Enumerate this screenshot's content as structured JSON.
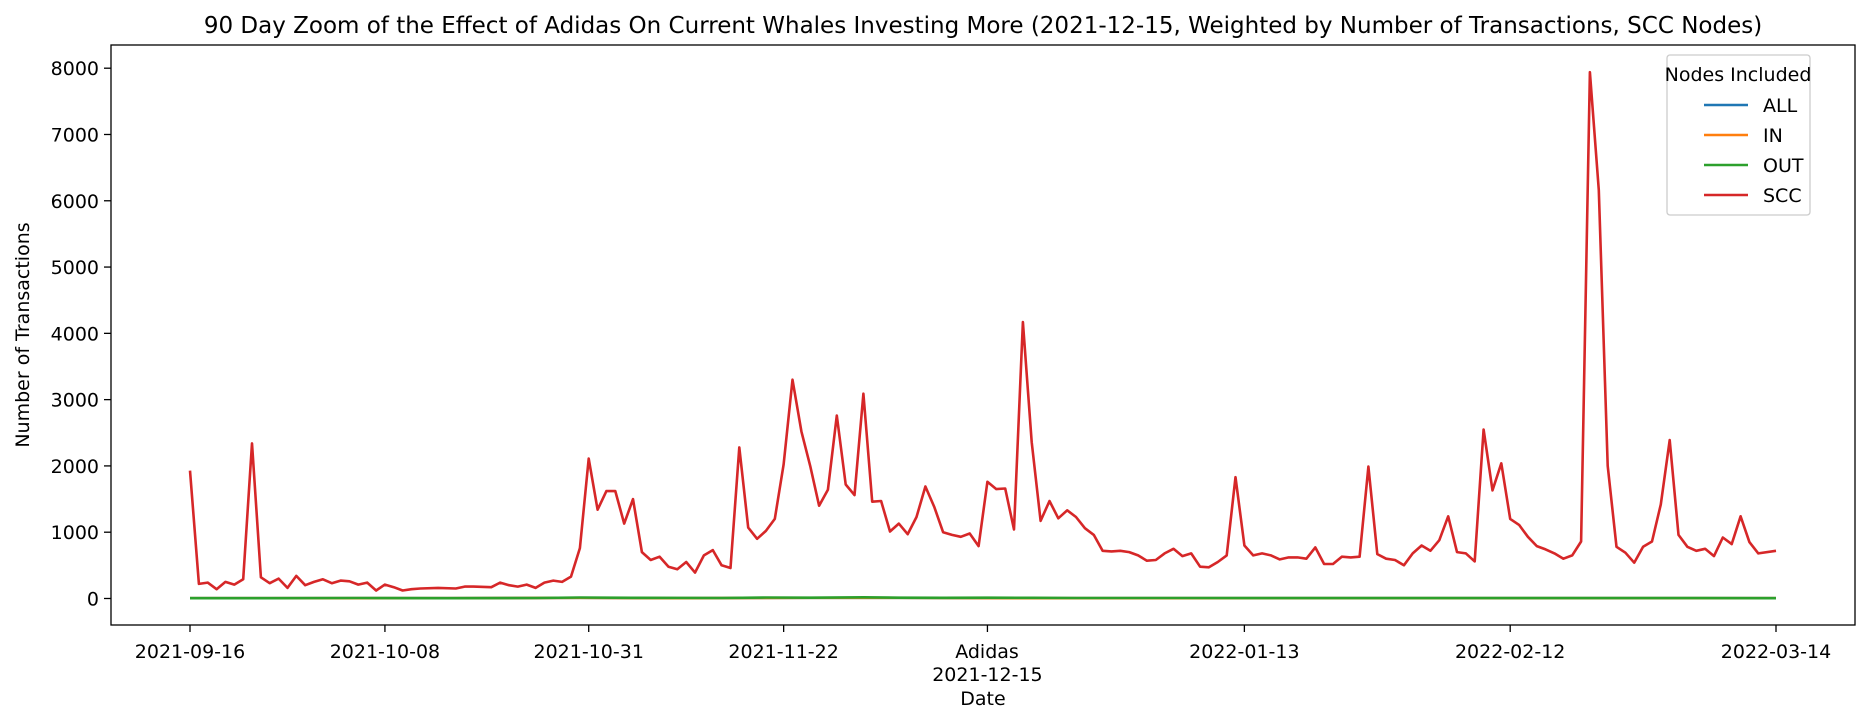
{
  "chart_data": {
    "type": "line",
    "title": "90 Day Zoom of the Effect of Adidas On Current Whales Investing More (2021-12-15, Weighted by Number of Transactions, SCC Nodes)",
    "xlabel": "Date",
    "ylabel": "Number of Transactions",
    "event": {
      "label": "Adidas",
      "date": "2021-12-15"
    },
    "x_range": [
      "2021-09-16",
      "2022-03-14"
    ],
    "ylim": [
      -400,
      8350
    ],
    "x_ticks": [
      "2021-09-16",
      "2021-10-08",
      "2021-10-31",
      "2021-11-22",
      "2021-12-15",
      "2022-01-13",
      "2022-02-12",
      "2022-03-14"
    ],
    "y_ticks": [
      0,
      1000,
      2000,
      3000,
      4000,
      5000,
      6000,
      7000,
      8000
    ],
    "grid": false,
    "legend": {
      "title": "Nodes Included",
      "placement": "top-right"
    },
    "series": [
      {
        "name": "ALL",
        "color": "#1f77b4",
        "points": [
          [
            "2021-09-16",
            5
          ],
          [
            "2021-10-01",
            5
          ],
          [
            "2021-10-15",
            5
          ],
          [
            "2021-10-30",
            10
          ],
          [
            "2021-11-10",
            5
          ],
          [
            "2021-11-25",
            10
          ],
          [
            "2021-12-05",
            10
          ],
          [
            "2021-12-20",
            5
          ],
          [
            "2022-01-05",
            5
          ],
          [
            "2022-01-20",
            5
          ],
          [
            "2022-02-05",
            5
          ],
          [
            "2022-02-20",
            5
          ],
          [
            "2022-03-14",
            5
          ]
        ]
      },
      {
        "name": "IN",
        "color": "#ff7f0e",
        "points": [
          [
            "2021-09-16",
            5
          ],
          [
            "2021-10-01",
            5
          ],
          [
            "2021-10-15",
            5
          ],
          [
            "2021-10-30",
            10
          ],
          [
            "2021-11-10",
            5
          ],
          [
            "2021-11-25",
            10
          ],
          [
            "2021-12-05",
            10
          ],
          [
            "2021-12-20",
            5
          ],
          [
            "2022-01-05",
            5
          ],
          [
            "2022-01-20",
            5
          ],
          [
            "2022-02-05",
            5
          ],
          [
            "2022-02-20",
            5
          ],
          [
            "2022-03-14",
            5
          ]
        ]
      },
      {
        "name": "OUT",
        "color": "#2ca02c",
        "points": [
          [
            "2021-09-16",
            5
          ],
          [
            "2021-09-25",
            5
          ],
          [
            "2021-10-05",
            8
          ],
          [
            "2021-10-15",
            5
          ],
          [
            "2021-10-25",
            8
          ],
          [
            "2021-10-30",
            15
          ],
          [
            "2021-11-05",
            10
          ],
          [
            "2021-11-15",
            8
          ],
          [
            "2021-11-20",
            15
          ],
          [
            "2021-11-25",
            12
          ],
          [
            "2021-12-01",
            18
          ],
          [
            "2021-12-05",
            12
          ],
          [
            "2021-12-10",
            10
          ],
          [
            "2021-12-15",
            12
          ],
          [
            "2021-12-20",
            10
          ],
          [
            "2021-12-25",
            8
          ],
          [
            "2022-01-05",
            8
          ],
          [
            "2022-01-15",
            6
          ],
          [
            "2022-01-25",
            6
          ],
          [
            "2022-02-05",
            6
          ],
          [
            "2022-02-15",
            6
          ],
          [
            "2022-02-25",
            6
          ],
          [
            "2022-03-05",
            6
          ],
          [
            "2022-03-14",
            5
          ]
        ]
      },
      {
        "name": "SCC",
        "color": "#d62728",
        "points": [
          [
            "2021-09-16",
            1930
          ],
          [
            "2021-09-17",
            220
          ],
          [
            "2021-09-18",
            240
          ],
          [
            "2021-09-19",
            140
          ],
          [
            "2021-09-20",
            250
          ],
          [
            "2021-09-21",
            210
          ],
          [
            "2021-09-22",
            290
          ],
          [
            "2021-09-23",
            2340
          ],
          [
            "2021-09-24",
            320
          ],
          [
            "2021-09-25",
            230
          ],
          [
            "2021-09-26",
            300
          ],
          [
            "2021-09-27",
            160
          ],
          [
            "2021-09-28",
            340
          ],
          [
            "2021-09-29",
            200
          ],
          [
            "2021-09-30",
            250
          ],
          [
            "2021-10-01",
            290
          ],
          [
            "2021-10-02",
            230
          ],
          [
            "2021-10-03",
            270
          ],
          [
            "2021-10-04",
            260
          ],
          [
            "2021-10-05",
            210
          ],
          [
            "2021-10-06",
            240
          ],
          [
            "2021-10-07",
            120
          ],
          [
            "2021-10-08",
            210
          ],
          [
            "2021-10-09",
            170
          ],
          [
            "2021-10-10",
            120
          ],
          [
            "2021-10-11",
            140
          ],
          [
            "2021-10-12",
            150
          ],
          [
            "2021-10-14",
            160
          ],
          [
            "2021-10-16",
            150
          ],
          [
            "2021-10-17",
            180
          ],
          [
            "2021-10-18",
            180
          ],
          [
            "2021-10-20",
            170
          ],
          [
            "2021-10-21",
            240
          ],
          [
            "2021-10-22",
            200
          ],
          [
            "2021-10-23",
            180
          ],
          [
            "2021-10-24",
            210
          ],
          [
            "2021-10-25",
            160
          ],
          [
            "2021-10-26",
            240
          ],
          [
            "2021-10-27",
            270
          ],
          [
            "2021-10-28",
            250
          ],
          [
            "2021-10-29",
            330
          ],
          [
            "2021-10-30",
            760
          ],
          [
            "2021-10-31",
            2110
          ],
          [
            "2021-11-01",
            1340
          ],
          [
            "2021-11-02",
            1620
          ],
          [
            "2021-11-03",
            1620
          ],
          [
            "2021-11-04",
            1130
          ],
          [
            "2021-11-05",
            1500
          ],
          [
            "2021-11-06",
            700
          ],
          [
            "2021-11-07",
            580
          ],
          [
            "2021-11-08",
            630
          ],
          [
            "2021-11-09",
            480
          ],
          [
            "2021-11-10",
            440
          ],
          [
            "2021-11-11",
            550
          ],
          [
            "2021-11-12",
            390
          ],
          [
            "2021-11-13",
            650
          ],
          [
            "2021-11-14",
            730
          ],
          [
            "2021-11-15",
            500
          ],
          [
            "2021-11-16",
            460
          ],
          [
            "2021-11-17",
            2280
          ],
          [
            "2021-11-18",
            1070
          ],
          [
            "2021-11-19",
            900
          ],
          [
            "2021-11-20",
            1020
          ],
          [
            "2021-11-21",
            1200
          ],
          [
            "2021-11-22",
            2020
          ],
          [
            "2021-11-23",
            3300
          ],
          [
            "2021-11-24",
            2520
          ],
          [
            "2021-11-25",
            2000
          ],
          [
            "2021-11-26",
            1400
          ],
          [
            "2021-11-27",
            1640
          ],
          [
            "2021-11-28",
            2760
          ],
          [
            "2021-11-29",
            1720
          ],
          [
            "2021-11-30",
            1560
          ],
          [
            "2021-12-01",
            3090
          ],
          [
            "2021-12-02",
            1460
          ],
          [
            "2021-12-03",
            1470
          ],
          [
            "2021-12-04",
            1010
          ],
          [
            "2021-12-05",
            1130
          ],
          [
            "2021-12-06",
            970
          ],
          [
            "2021-12-07",
            1230
          ],
          [
            "2021-12-08",
            1690
          ],
          [
            "2021-12-09",
            1380
          ],
          [
            "2021-12-10",
            1000
          ],
          [
            "2021-12-11",
            960
          ],
          [
            "2021-12-12",
            930
          ],
          [
            "2021-12-13",
            980
          ],
          [
            "2021-12-14",
            790
          ],
          [
            "2021-12-15",
            1760
          ],
          [
            "2021-12-16",
            1650
          ],
          [
            "2021-12-17",
            1660
          ],
          [
            "2021-12-18",
            1040
          ],
          [
            "2021-12-19",
            4170
          ],
          [
            "2021-12-20",
            2360
          ],
          [
            "2021-12-21",
            1170
          ],
          [
            "2021-12-22",
            1470
          ],
          [
            "2021-12-23",
            1210
          ],
          [
            "2021-12-24",
            1330
          ],
          [
            "2021-12-25",
            1230
          ],
          [
            "2021-12-26",
            1060
          ],
          [
            "2021-12-27",
            960
          ],
          [
            "2021-12-28",
            720
          ],
          [
            "2021-12-29",
            710
          ],
          [
            "2021-12-30",
            720
          ],
          [
            "2021-12-31",
            700
          ],
          [
            "2022-01-01",
            650
          ],
          [
            "2022-01-02",
            570
          ],
          [
            "2022-01-03",
            580
          ],
          [
            "2022-01-04",
            680
          ],
          [
            "2022-01-05",
            750
          ],
          [
            "2022-01-06",
            640
          ],
          [
            "2022-01-07",
            680
          ],
          [
            "2022-01-08",
            480
          ],
          [
            "2022-01-09",
            470
          ],
          [
            "2022-01-10",
            550
          ],
          [
            "2022-01-11",
            650
          ],
          [
            "2022-01-12",
            1830
          ],
          [
            "2022-01-13",
            800
          ],
          [
            "2022-01-14",
            650
          ],
          [
            "2022-01-15",
            680
          ],
          [
            "2022-01-16",
            650
          ],
          [
            "2022-01-17",
            590
          ],
          [
            "2022-01-18",
            620
          ],
          [
            "2022-01-19",
            620
          ],
          [
            "2022-01-20",
            600
          ],
          [
            "2022-01-21",
            770
          ],
          [
            "2022-01-22",
            520
          ],
          [
            "2022-01-23",
            520
          ],
          [
            "2022-01-24",
            630
          ],
          [
            "2022-01-25",
            620
          ],
          [
            "2022-01-26",
            630
          ],
          [
            "2022-01-27",
            1990
          ],
          [
            "2022-01-28",
            670
          ],
          [
            "2022-01-29",
            600
          ],
          [
            "2022-01-30",
            580
          ],
          [
            "2022-01-31",
            500
          ],
          [
            "2022-02-01",
            680
          ],
          [
            "2022-02-02",
            800
          ],
          [
            "2022-02-03",
            720
          ],
          [
            "2022-02-04",
            880
          ],
          [
            "2022-02-05",
            1240
          ],
          [
            "2022-02-06",
            700
          ],
          [
            "2022-02-07",
            680
          ],
          [
            "2022-02-08",
            560
          ],
          [
            "2022-02-09",
            2550
          ],
          [
            "2022-02-10",
            1630
          ],
          [
            "2022-02-11",
            2040
          ],
          [
            "2022-02-12",
            1200
          ],
          [
            "2022-02-13",
            1110
          ],
          [
            "2022-02-14",
            930
          ],
          [
            "2022-02-15",
            790
          ],
          [
            "2022-02-16",
            740
          ],
          [
            "2022-02-17",
            680
          ],
          [
            "2022-02-18",
            600
          ],
          [
            "2022-02-19",
            650
          ],
          [
            "2022-02-20",
            860
          ],
          [
            "2022-02-21",
            7940
          ],
          [
            "2022-02-22",
            6160
          ],
          [
            "2022-02-23",
            2000
          ],
          [
            "2022-02-24",
            780
          ],
          [
            "2022-02-25",
            690
          ],
          [
            "2022-02-26",
            540
          ],
          [
            "2022-02-27",
            780
          ],
          [
            "2022-02-28",
            860
          ],
          [
            "2022-03-01",
            1420
          ],
          [
            "2022-03-02",
            2390
          ],
          [
            "2022-03-03",
            960
          ],
          [
            "2022-03-04",
            780
          ],
          [
            "2022-03-05",
            720
          ],
          [
            "2022-03-06",
            750
          ],
          [
            "2022-03-07",
            640
          ],
          [
            "2022-03-08",
            920
          ],
          [
            "2022-03-09",
            820
          ],
          [
            "2022-03-10",
            1240
          ],
          [
            "2022-03-11",
            850
          ],
          [
            "2022-03-12",
            680
          ],
          [
            "2022-03-14",
            720
          ]
        ]
      }
    ]
  }
}
